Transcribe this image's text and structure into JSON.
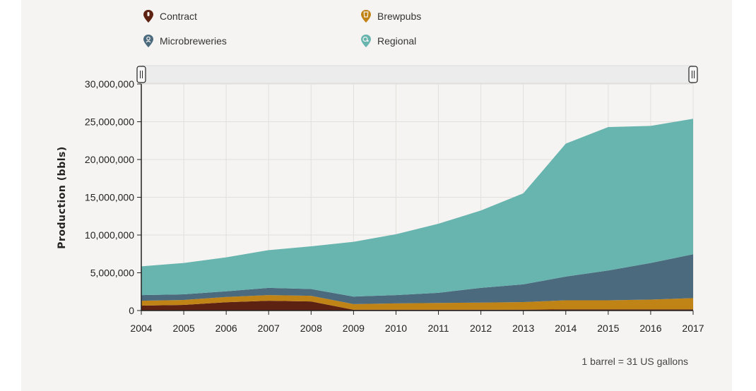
{
  "colors": {
    "Contract": "#5e2212",
    "Brewpubs": "#c08316",
    "Microbreweries": "#4c6a7e",
    "Regional": "#68b5af"
  },
  "chart_data": {
    "type": "area",
    "stacked": true,
    "title": "",
    "xlabel": "",
    "ylabel": "Production (bbls)",
    "x": [
      2004,
      2005,
      2006,
      2007,
      2008,
      2009,
      2010,
      2011,
      2012,
      2013,
      2014,
      2015,
      2016,
      2017
    ],
    "ylim": [
      0,
      30000000
    ],
    "yticks": [
      0,
      5000000,
      10000000,
      15000000,
      20000000,
      25000000,
      30000000
    ],
    "ytick_labels": [
      "0",
      "5,000,000",
      "10,000,000",
      "15,000,000",
      "20,000,000",
      "25,000,000",
      "30,000,000"
    ],
    "grid": true,
    "legend_position": "top",
    "series": [
      {
        "name": "Contract",
        "icon": "map-pin-icon",
        "values": [
          650000,
          750000,
          1100000,
          1300000,
          1200000,
          100000,
          100000,
          100000,
          100000,
          120000,
          150000,
          150000,
          150000,
          150000
        ]
      },
      {
        "name": "Brewpubs",
        "icon": "beer-glass-pin-icon",
        "values": [
          650000,
          650000,
          700000,
          750000,
          750000,
          750000,
          850000,
          900000,
          950000,
          1000000,
          1200000,
          1200000,
          1300000,
          1500000
        ]
      },
      {
        "name": "Microbreweries",
        "icon": "brewer-pin-icon",
        "values": [
          750000,
          750000,
          750000,
          950000,
          900000,
          1000000,
          1100000,
          1350000,
          1950000,
          2350000,
          3150000,
          3950000,
          4850000,
          5800000
        ]
      },
      {
        "name": "Regional",
        "icon": "regional-pin-icon",
        "values": [
          3800000,
          4150000,
          4500000,
          5000000,
          5650000,
          7250000,
          8050000,
          9150000,
          10250000,
          12050000,
          17600000,
          19000000,
          18150000,
          17950000
        ]
      }
    ],
    "range_slider": {
      "start": 2004,
      "end": 2017
    }
  },
  "footnote": "1 barrel = 31 US gallons"
}
